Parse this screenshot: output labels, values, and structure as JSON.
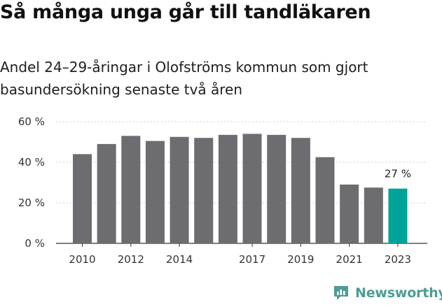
{
  "header": {
    "title": "Så många unga går till tandläkaren",
    "subtitle": "Andel 24–29-åringar i Olofströms kommun som gjort basundersökning senaste två åren"
  },
  "brand": {
    "name": "Newsworthy",
    "logo_icon": "newsworthy-bar-chart-bubble-icon",
    "color": "#4e9c95"
  },
  "colors": {
    "bar": "#6d6c70",
    "highlight": "#00a398",
    "grid": "#cccccc",
    "axis": "#333333"
  },
  "chart_data": {
    "type": "bar",
    "title": "Så många unga går till tandläkaren",
    "subtitle": "Andel 24–29-åringar i Olofströms kommun som gjort basundersökning senaste två åren",
    "categories": [
      "2010",
      "2011",
      "2012",
      "2013",
      "2014",
      "2015",
      "2016",
      "2017",
      "2018",
      "2019",
      "2020",
      "2021",
      "2022",
      "2023"
    ],
    "x_tick_labels": [
      "2010",
      "2012",
      "2014",
      "2017",
      "2019",
      "2021",
      "2023"
    ],
    "values": [
      44,
      49,
      53,
      50.5,
      52.5,
      52,
      53.5,
      54,
      53.5,
      52,
      42.5,
      29,
      27.5,
      27
    ],
    "ylim": [
      0,
      60
    ],
    "y_ticks": [
      0,
      20,
      40,
      60
    ],
    "y_tick_suffix": " %",
    "highlight_index": 13,
    "annotation": "27 %",
    "grid": true,
    "legend": "none"
  }
}
